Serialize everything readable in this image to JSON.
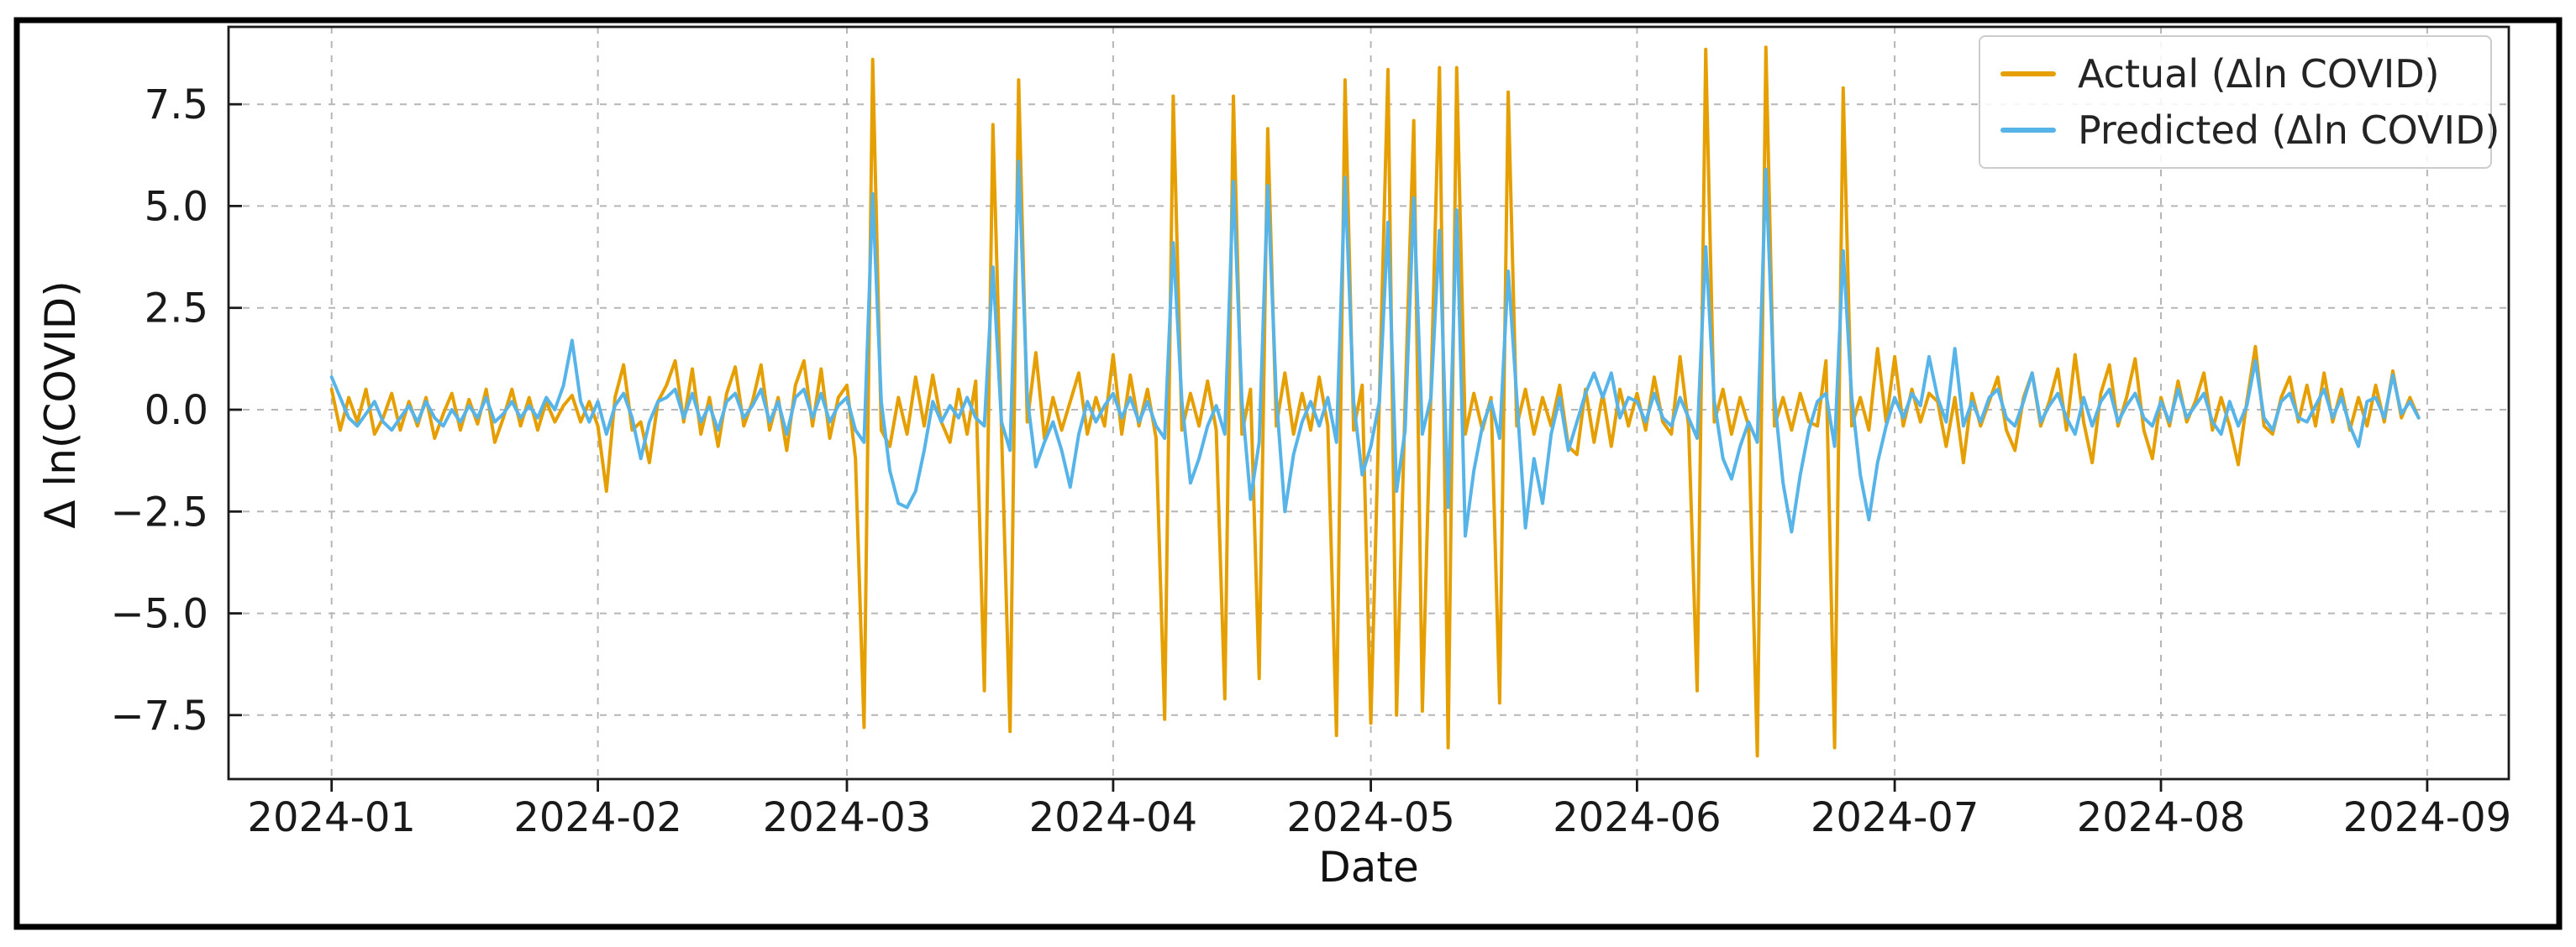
{
  "figure": {
    "background": "#ffffff",
    "border_color": "#000000",
    "plot_bg": "#ffffff",
    "grid_color": "#b6b6b6"
  },
  "chart_data": {
    "type": "line",
    "title": "",
    "xlabel": "Date",
    "ylabel": "Δ ln(COVID)",
    "grid": true,
    "legend_position": "upper right",
    "x_start_date": "2024-01-01",
    "x_frequency": "daily",
    "x_tick_labels": [
      "2024-01",
      "2024-02",
      "2024-03",
      "2024-04",
      "2024-05",
      "2024-06",
      "2024-07",
      "2024-08",
      "2024-09"
    ],
    "x_tick_day_offsets": [
      0,
      31,
      60,
      91,
      121,
      152,
      182,
      213,
      244
    ],
    "xlim_days": [
      -12,
      253.5
    ],
    "y_ticks": [
      7.5,
      5.0,
      2.5,
      0.0,
      -2.5,
      -5.0,
      -7.5
    ],
    "ylim": [
      -9.07,
      9.4
    ],
    "series": [
      {
        "key": "actual",
        "name": "Actual (Δln COVID)",
        "color": "#E69F00",
        "values": [
          0.5,
          -0.5,
          0.3,
          -0.3,
          0.5,
          -0.6,
          -0.2,
          0.4,
          -0.5,
          0.2,
          -0.4,
          0.3,
          -0.7,
          -0.1,
          0.4,
          -0.5,
          0.25,
          -0.35,
          0.5,
          -0.8,
          -0.2,
          0.5,
          -0.4,
          0.3,
          -0.5,
          0.2,
          -0.3,
          0.1,
          0.35,
          -0.3,
          0.2,
          -0.4,
          -2.0,
          0.3,
          1.1,
          -0.5,
          -0.3,
          -1.3,
          0.2,
          0.6,
          1.2,
          -0.3,
          1.0,
          -0.6,
          0.3,
          -0.9,
          0.4,
          1.05,
          -0.4,
          0.2,
          1.1,
          -0.5,
          0.3,
          -1.0,
          0.6,
          1.2,
          -0.4,
          1.0,
          -0.7,
          0.3,
          0.6,
          -1.2,
          -7.8,
          8.6,
          -0.5,
          -0.9,
          0.3,
          -0.6,
          0.8,
          -0.4,
          0.85,
          -0.3,
          -0.8,
          0.5,
          -0.6,
          0.7,
          -6.9,
          7.0,
          -0.5,
          -7.9,
          8.1,
          -0.3,
          1.4,
          -0.7,
          0.3,
          -0.5,
          0.2,
          0.9,
          -0.6,
          0.3,
          -0.4,
          1.35,
          -0.6,
          0.85,
          -0.4,
          0.5,
          -0.7,
          -7.6,
          7.7,
          -0.5,
          0.4,
          -0.4,
          0.7,
          -0.5,
          -7.1,
          7.7,
          -0.6,
          0.5,
          -6.6,
          6.9,
          -0.4,
          0.9,
          -0.6,
          0.4,
          -0.5,
          0.8,
          -0.4,
          -8.0,
          8.1,
          -0.5,
          0.6,
          -7.7,
          0.3,
          8.35,
          -7.5,
          0.2,
          7.1,
          -7.4,
          0.4,
          8.4,
          -8.3,
          8.4,
          -0.6,
          0.4,
          -0.5,
          0.3,
          -7.2,
          7.8,
          -0.4,
          0.5,
          -0.6,
          0.3,
          -0.4,
          0.6,
          -0.9,
          -1.1,
          0.5,
          -0.8,
          0.4,
          -0.9,
          0.5,
          -0.4,
          0.4,
          -0.5,
          0.8,
          -0.3,
          -0.6,
          1.3,
          -0.4,
          -6.9,
          8.85,
          -0.3,
          0.5,
          -0.6,
          0.3,
          -0.4,
          -8.5,
          8.9,
          -0.4,
          0.3,
          -0.5,
          0.4,
          -0.3,
          -0.4,
          1.2,
          -8.3,
          7.9,
          -0.4,
          0.3,
          -0.5,
          1.5,
          -0.3,
          1.3,
          -0.4,
          0.5,
          -0.3,
          0.4,
          0.2,
          -0.9,
          0.3,
          -1.3,
          0.4,
          -0.4,
          0.2,
          0.8,
          -0.5,
          -1.0,
          0.3,
          0.9,
          -0.4,
          0.2,
          1.0,
          -0.5,
          1.35,
          -0.3,
          -1.3,
          0.4,
          1.1,
          -0.4,
          0.3,
          1.25,
          -0.5,
          -1.2,
          0.3,
          -0.4,
          0.7,
          -0.3,
          0.2,
          0.9,
          -0.5,
          0.3,
          -0.4,
          -1.35,
          0.2,
          1.55,
          -0.4,
          -0.6,
          0.3,
          0.8,
          -0.3,
          0.6,
          -0.4,
          0.9,
          -0.3,
          0.5,
          -0.5,
          0.3,
          -0.4,
          0.6,
          -0.3,
          0.95,
          -0.2,
          0.3,
          -0.2
        ]
      },
      {
        "key": "predicted",
        "name": "Predicted (Δln COVID)",
        "color": "#56B4E9",
        "values": [
          0.8,
          0.3,
          -0.2,
          -0.4,
          -0.1,
          0.2,
          -0.3,
          -0.5,
          -0.2,
          0.1,
          -0.3,
          0.2,
          -0.2,
          -0.4,
          0.0,
          -0.3,
          0.1,
          -0.2,
          0.3,
          -0.3,
          -0.1,
          0.2,
          -0.2,
          0.1,
          -0.2,
          0.3,
          0.0,
          0.6,
          1.7,
          0.2,
          -0.3,
          0.2,
          -0.6,
          0.1,
          0.4,
          -0.2,
          -1.2,
          -0.3,
          0.2,
          0.3,
          0.5,
          -0.2,
          0.4,
          -0.3,
          0.1,
          -0.5,
          0.2,
          0.4,
          -0.2,
          0.1,
          0.5,
          -0.3,
          0.2,
          -0.6,
          0.3,
          0.5,
          -0.2,
          0.4,
          -0.3,
          0.1,
          0.3,
          -0.5,
          -0.8,
          5.3,
          0.2,
          -1.5,
          -2.3,
          -2.4,
          -2.0,
          -1.0,
          0.2,
          -0.3,
          0.1,
          -0.2,
          0.3,
          -0.2,
          -0.4,
          3.5,
          -0.3,
          -1.0,
          6.1,
          0.3,
          -1.4,
          -0.8,
          -0.3,
          -1.0,
          -1.9,
          -0.6,
          0.2,
          -0.3,
          0.1,
          0.4,
          -0.2,
          0.3,
          -0.3,
          0.2,
          -0.4,
          -0.7,
          4.1,
          0.2,
          -1.8,
          -1.2,
          -0.4,
          0.1,
          -0.6,
          5.6,
          0.2,
          -2.2,
          -0.8,
          5.5,
          0.3,
          -2.5,
          -1.1,
          -0.3,
          0.2,
          -0.4,
          0.3,
          -0.8,
          5.7,
          0.2,
          -1.6,
          -0.9,
          0.2,
          4.6,
          -2.0,
          -0.5,
          5.2,
          -0.6,
          0.3,
          4.4,
          -2.4,
          4.9,
          -3.1,
          -1.5,
          -0.4,
          0.2,
          -0.7,
          3.4,
          0.3,
          -2.9,
          -1.2,
          -2.3,
          -0.6,
          0.3,
          -1.0,
          -0.3,
          0.4,
          0.9,
          0.3,
          0.9,
          -0.2,
          0.3,
          0.2,
          -0.3,
          0.4,
          -0.2,
          -0.4,
          0.3,
          -0.2,
          -0.7,
          4.0,
          0.2,
          -1.2,
          -1.7,
          -0.9,
          -0.3,
          -0.8,
          5.9,
          0.3,
          -1.8,
          -3.0,
          -1.6,
          -0.5,
          0.2,
          0.4,
          -0.9,
          3.9,
          0.3,
          -1.6,
          -2.7,
          -1.3,
          -0.4,
          0.3,
          -0.2,
          0.4,
          0.1,
          1.3,
          0.3,
          -0.3,
          1.5,
          -0.4,
          0.2,
          -0.3,
          0.3,
          0.5,
          -0.2,
          -0.4,
          0.2,
          0.9,
          -0.3,
          0.1,
          0.4,
          -0.2,
          -0.6,
          0.3,
          -0.4,
          0.2,
          0.5,
          -0.3,
          0.1,
          0.4,
          -0.2,
          -0.4,
          0.2,
          -0.3,
          0.5,
          -0.2,
          0.1,
          0.4,
          -0.3,
          -0.6,
          0.2,
          -0.4,
          0.1,
          1.2,
          -0.2,
          -0.5,
          0.2,
          0.4,
          -0.2,
          -0.3,
          0.1,
          0.5,
          -0.2,
          0.3,
          -0.4,
          -0.9,
          0.2,
          0.3,
          -0.2,
          0.85,
          -0.1,
          0.2,
          -0.2
        ]
      }
    ]
  }
}
